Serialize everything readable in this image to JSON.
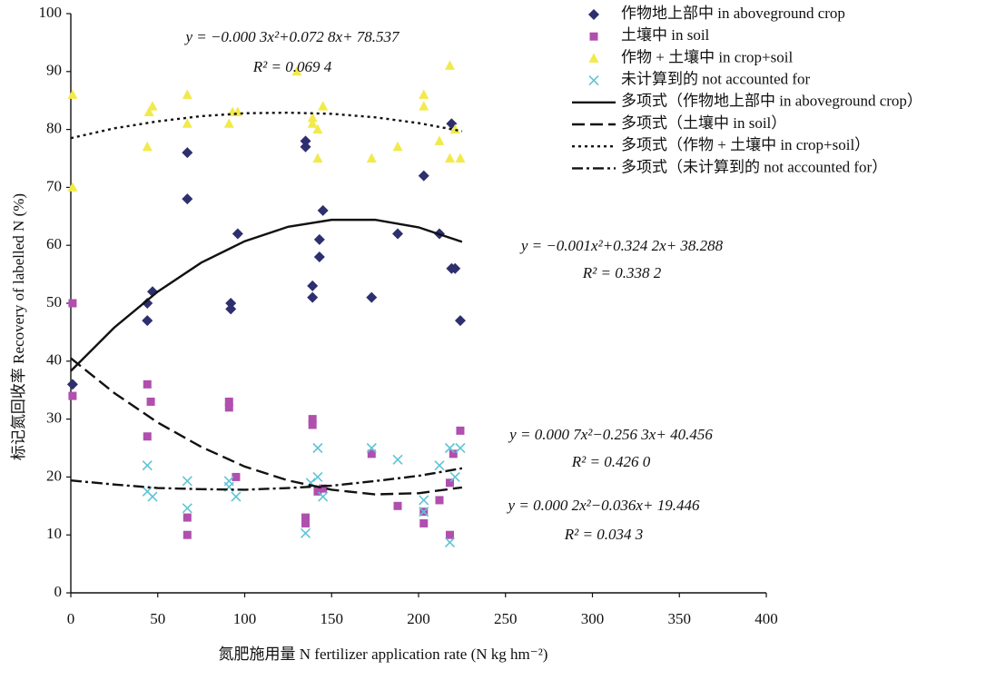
{
  "chart_data": {
    "type": "scatter",
    "xlabel": "氮肥施用量 N fertilizer application rate (N kg hm⁻²)",
    "ylabel": "标记氮回收率 Recovery of labelled N (%)",
    "xlim": [
      0,
      400
    ],
    "xticks": [
      0,
      50,
      100,
      150,
      200,
      250,
      300,
      350,
      400
    ],
    "ylim": [
      0,
      100
    ],
    "yticks": [
      0,
      10,
      20,
      30,
      40,
      50,
      60,
      70,
      80,
      90,
      100
    ],
    "grid": false,
    "legend": "upper right",
    "series": [
      {
        "name": "作物地上部中 in aboveground crop",
        "type": "scatter",
        "marker": "diamond",
        "color": "#2e2f6e",
        "x": [
          1,
          44,
          44,
          47,
          67,
          67,
          92,
          92,
          96,
          135,
          135,
          139,
          139,
          143,
          143,
          145,
          173,
          188,
          203,
          212,
          219,
          219,
          221,
          224
        ],
        "values": [
          36,
          50,
          47,
          52,
          76,
          68,
          50,
          49,
          62,
          78,
          77,
          53,
          51,
          61,
          58,
          66,
          51,
          62,
          72,
          62,
          81,
          56,
          56,
          47
        ]
      },
      {
        "name": "土壤中 in soil",
        "type": "scatter",
        "marker": "square",
        "color": "#b04fae",
        "x": [
          1,
          1,
          44,
          44,
          46,
          67,
          67,
          91,
          91,
          95,
          135,
          135,
          139,
          139,
          142,
          145,
          173,
          188,
          203,
          203,
          212,
          218,
          218,
          220,
          224
        ],
        "values": [
          50,
          34,
          36,
          27,
          33,
          13,
          10,
          33,
          32,
          20,
          13,
          12,
          30,
          29,
          17.5,
          18,
          24,
          15,
          14,
          12,
          16,
          19,
          10,
          24,
          28
        ]
      },
      {
        "name": "作物 + 土壤中 in crop+soil",
        "type": "scatter",
        "marker": "triangle",
        "color": "#f2ea4a",
        "x": [
          1,
          1,
          44,
          45,
          47,
          67,
          67,
          91,
          93,
          96,
          130,
          139,
          139,
          142,
          142,
          145,
          173,
          188,
          203,
          203,
          212,
          218,
          218,
          221,
          224
        ],
        "values": [
          86,
          70,
          77,
          83,
          84,
          86,
          81,
          81,
          83,
          83,
          90,
          82,
          81,
          80,
          75,
          84,
          75,
          77,
          86,
          84,
          78,
          91,
          75,
          80,
          75
        ]
      },
      {
        "name": "未计算到的 not accounted for",
        "type": "scatter",
        "marker": "x",
        "color": "#5fc4d6",
        "x": [
          44,
          44,
          47,
          67,
          67,
          91,
          91,
          95,
          135,
          138,
          142,
          142,
          145,
          173,
          188,
          203,
          203,
          212,
          218,
          218,
          221,
          224
        ],
        "values": [
          22,
          17.5,
          16.6,
          19.3,
          14.6,
          19.3,
          18.3,
          16.6,
          10.3,
          19,
          25,
          20,
          16.6,
          25,
          23,
          16,
          14,
          22,
          25,
          8.7,
          20,
          25
        ]
      },
      {
        "name": "多项式（作物地上部中 in aboveground crop）",
        "type": "line",
        "dash": "solid",
        "color": "#111111",
        "x": [
          0,
          25,
          50,
          75,
          100,
          125,
          150,
          175,
          200,
          225
        ],
        "values": [
          38.3,
          45.8,
          52.0,
          57.0,
          60.7,
          63.2,
          64.4,
          64.4,
          63.1,
          60.6
        ]
      },
      {
        "name": "多项式（土壤中 in soil）",
        "type": "line",
        "dash": "dashed",
        "color": "#111111",
        "x": [
          0,
          25,
          50,
          75,
          100,
          125,
          150,
          175,
          200,
          225
        ],
        "values": [
          40.5,
          34.5,
          29.4,
          25.2,
          21.8,
          19.4,
          17.8,
          17.0,
          17.2,
          18.2
        ]
      },
      {
        "name": "多项式（作物 + 土壤中 in crop+soil）",
        "type": "line",
        "dash": "dotted",
        "color": "#111111",
        "x": [
          0,
          25,
          50,
          75,
          100,
          125,
          150,
          175,
          200,
          225
        ],
        "values": [
          78.5,
          80.2,
          81.4,
          82.3,
          82.8,
          82.9,
          82.7,
          82.1,
          81.1,
          79.7
        ]
      },
      {
        "name": "多项式（未计算到的 not accounted for）",
        "type": "line",
        "dash": "dashdot",
        "color": "#111111",
        "x": [
          0,
          25,
          50,
          75,
          100,
          125,
          150,
          175,
          200,
          225
        ],
        "values": [
          19.4,
          18.7,
          18.1,
          17.9,
          17.8,
          18.1,
          18.5,
          19.3,
          20.2,
          21.5
        ]
      }
    ],
    "annotations": [
      "y = −0.000 3x²+0.072 8x+ 78.537",
      "R² = 0.069 4",
      "y = −0.001x²+0.324 2x+ 38.288",
      "R² = 0.338 2",
      "y = 0.000 7x²−0.256 3x+ 40.456",
      "R² = 0.426 0",
      "y = 0.000 2x²−0.036x+ 19.446",
      "R² = 0.034 3"
    ]
  }
}
